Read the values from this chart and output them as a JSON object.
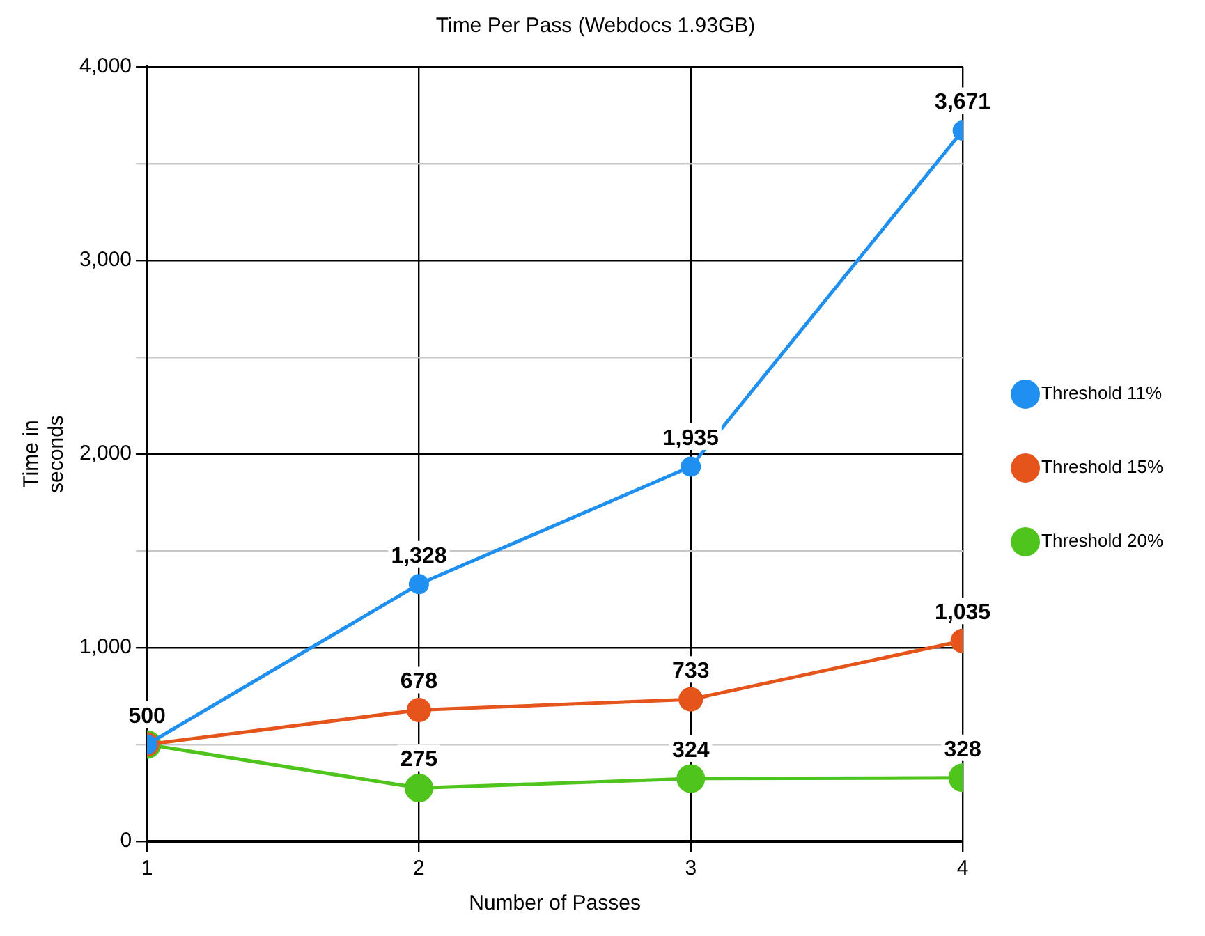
{
  "chart_data": {
    "type": "line",
    "title": "Time Per Pass (Webdocs 1.93GB)",
    "xlabel": "Number of Passes",
    "ylabel": "Time in seconds",
    "x": [
      1,
      2,
      3,
      4
    ],
    "xlim": [
      1,
      4
    ],
    "xticks": [
      1,
      2,
      3,
      4
    ],
    "ylim": [
      0,
      4000
    ],
    "yticks": [
      0,
      {
        "value": 500,
        "label": null
      },
      {
        "value": 1000,
        "label": "1,000"
      },
      {
        "value": 1500,
        "label": null
      },
      {
        "value": 2000,
        "label": "2,000"
      },
      {
        "value": 2500,
        "label": null
      },
      {
        "value": 3000,
        "label": "3,000"
      },
      {
        "value": 3500,
        "label": null
      },
      {
        "value": 4000,
        "label": "4,000"
      }
    ],
    "series": [
      {
        "name": "Threshold 11%",
        "color": "#1f8ff0",
        "values": [
          500,
          1328,
          1935,
          3671
        ],
        "value_labels": [
          "500",
          "1,328",
          "1,935",
          "3,671"
        ]
      },
      {
        "name": "Threshold 15%",
        "color": "#e5541b",
        "values": [
          500,
          678,
          733,
          1035
        ],
        "value_labels": [
          null,
          "678",
          "733",
          "1,035"
        ]
      },
      {
        "name": "Threshold 20%",
        "color": "#4fc41c",
        "values": [
          500,
          275,
          324,
          328
        ],
        "value_labels": [
          null,
          "275",
          "324",
          "328"
        ]
      }
    ],
    "grid": true,
    "legend": "right",
    "marker": "circle",
    "line_style": "solid"
  }
}
